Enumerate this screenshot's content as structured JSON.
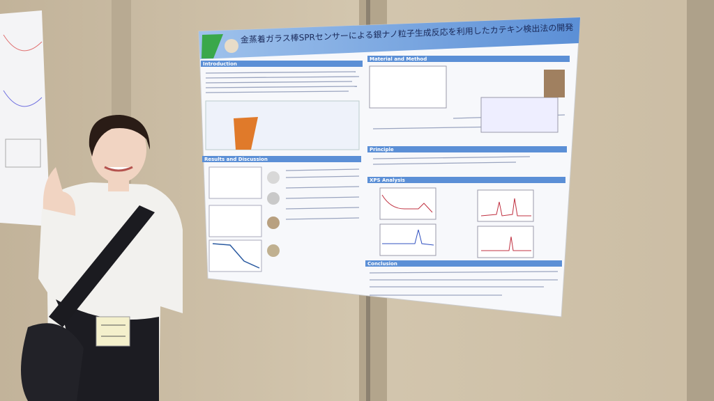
{
  "poster": {
    "title": "金蒸着ガラス棒SPRセンサーによる銀ナノ粒子生成反応を利用したカテキン検出法の開発",
    "sections": [
      "Introduction",
      "Material and Method",
      "Results and Discussion",
      "Principle",
      "XPS Analysis",
      "Conclusion"
    ]
  }
}
